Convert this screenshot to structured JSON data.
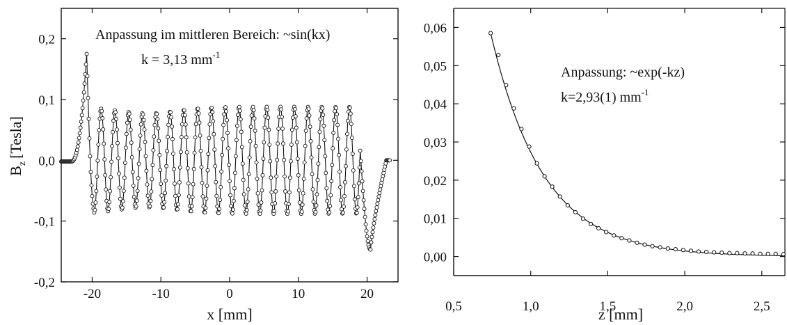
{
  "colors": {
    "ink": "#111111",
    "marker_fill": "#ffffff",
    "background": "#ffffff"
  },
  "chart_data": [
    {
      "type": "scatter",
      "annotation_line1": "Anpassung im mittleren Bereich: ~sin(kx)",
      "annotation_k": "k = 3,13 mm",
      "annotation_k_exp": "-1",
      "xlabel": "x [mm]",
      "ylabel_main": "B",
      "ylabel_sub": "z",
      "ylabel_rest": "[Tesla]",
      "xlim": [
        -24.5,
        24.5
      ],
      "ylim": [
        -0.2,
        0.25
      ],
      "xticks": [
        -20,
        -10,
        0,
        10,
        20
      ],
      "xtick_labels": [
        "-20",
        "-10",
        "0",
        "10",
        "20"
      ],
      "yticks": [
        -0.2,
        -0.1,
        0.0,
        0.1,
        0.2
      ],
      "ytick_labels": [
        "-0,2",
        "-0,1",
        "0,0",
        "0,1",
        "0,2"
      ],
      "grid": false,
      "series": [
        {
          "model": "field_profile",
          "x_range": [
            -24.5,
            23.3
          ],
          "fit_k": 3.13,
          "central_amplitude": 0.088,
          "edge_peak_left": {
            "x": -20.8,
            "y": 0.175
          },
          "edge_peak_right": {
            "x": 20.5,
            "y": -0.147
          },
          "central_region": [
            -19.7,
            19.0
          ]
        }
      ]
    },
    {
      "type": "scatter",
      "annotation_line1": "Anpassung: ~exp(-kz)",
      "annotation_k": "k=2,93(1) mm",
      "annotation_k_exp": "-1",
      "xlabel": "z [mm]",
      "xlim": [
        0.5,
        2.65
      ],
      "ylim": [
        -0.005,
        0.065
      ],
      "xticks": [
        0.5,
        1.0,
        1.5,
        2.0,
        2.5
      ],
      "xtick_labels": [
        "0,5",
        "1,0",
        "1,5",
        "2,0",
        "2,5"
      ],
      "yticks": [
        0.0,
        0.01,
        0.02,
        0.03,
        0.04,
        0.05,
        0.06
      ],
      "ytick_labels": [
        "0,00",
        "0,01",
        "0,02",
        "0,03",
        "0,04",
        "0,05",
        "0,06"
      ],
      "grid": false,
      "series": [
        {
          "fit_k": 2.93,
          "z": [
            0.74,
            0.79,
            0.84,
            0.89,
            0.94,
            0.99,
            1.04,
            1.09,
            1.14,
            1.19,
            1.24,
            1.29,
            1.34,
            1.39,
            1.44,
            1.49,
            1.54,
            1.59,
            1.64,
            1.69,
            1.74,
            1.79,
            1.84,
            1.89,
            1.94,
            1.99,
            2.04,
            2.09,
            2.14,
            2.19,
            2.24,
            2.29,
            2.34,
            2.39,
            2.44,
            2.49,
            2.54,
            2.59,
            2.64
          ],
          "values": [
            0.0585,
            0.0528,
            0.0449,
            0.0388,
            0.0334,
            0.0288,
            0.0244,
            0.021,
            0.0183,
            0.0157,
            0.0134,
            0.0116,
            0.0099,
            0.0085,
            0.0074,
            0.0064,
            0.0055,
            0.0048,
            0.0042,
            0.0036,
            0.0031,
            0.0027,
            0.0024,
            0.0021,
            0.0019,
            0.0017,
            0.0015,
            0.0013,
            0.0012,
            0.0011,
            0.001,
            0.0009,
            0.0009,
            0.0008,
            0.0008,
            0.0007,
            0.0007,
            0.0007,
            0.0006
          ]
        }
      ]
    }
  ]
}
